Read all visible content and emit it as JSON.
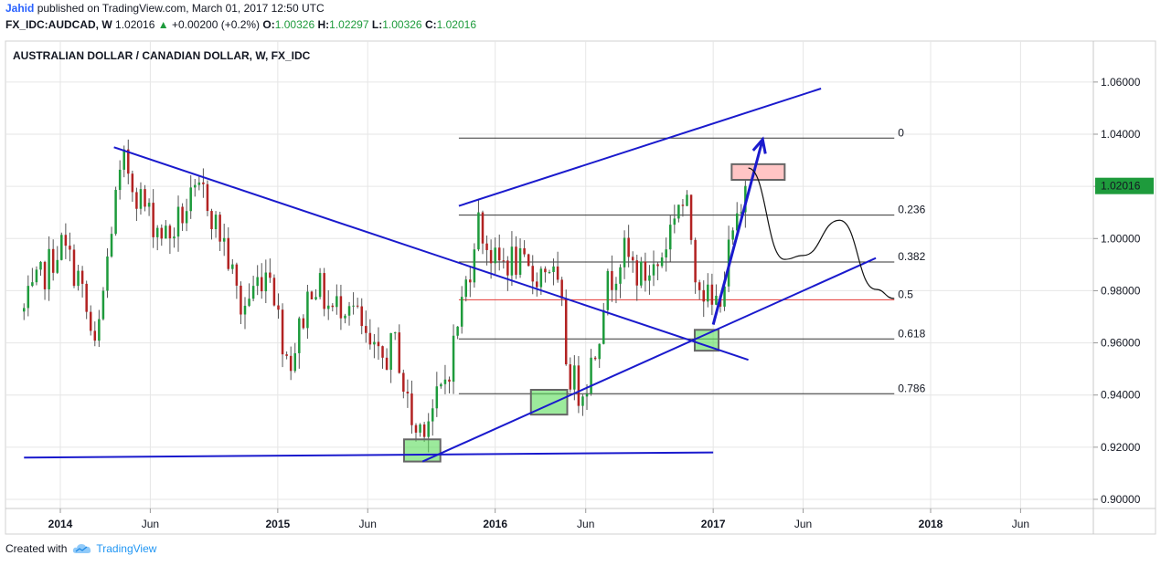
{
  "header": {
    "author": "Jahid",
    "published_text": "published on TradingView.com, March 01, 2017 12:50 UTC",
    "symbol": "FX_IDC:AUDCAD, W",
    "last": "1.02016",
    "change": "+0.00200 (+0.2%)",
    "o_label": "O:",
    "o_value": "1.00326",
    "h_label": "H:",
    "h_value": "1.02297",
    "l_label": "L:",
    "l_value": "1.00326",
    "c_label": "C:",
    "c_value": "1.02016"
  },
  "footer": {
    "created_with": "Created with",
    "brand": "TradingView"
  },
  "colors": {
    "up": "#1e9b3c",
    "down": "#b22222",
    "trend": "#1a1acd",
    "price_badge": "#1e9b3c",
    "grid": "#e6e6e6",
    "fib_mid": "#e53935"
  },
  "chart_data": {
    "type": "candlestick",
    "title": "AUSTRALIAN DOLLAR / CANADIAN DOLLAR, W, FX_IDC",
    "ylim": [
      0.89,
      1.073
    ],
    "y_ticks": [
      "1.06000",
      "1.04000",
      "1.02000",
      "1.00000",
      "0.98000",
      "0.96000",
      "0.94000",
      "0.92000",
      "0.90000"
    ],
    "x_ticks": [
      {
        "label": "2014",
        "bold": true,
        "date": "2014-01"
      },
      {
        "label": "Jun",
        "bold": false,
        "date": "2014-06"
      },
      {
        "label": "2015",
        "bold": true,
        "date": "2015-01"
      },
      {
        "label": "Jun",
        "bold": false,
        "date": "2015-06"
      },
      {
        "label": "2016",
        "bold": true,
        "date": "2016-01"
      },
      {
        "label": "Jun",
        "bold": false,
        "date": "2016-06"
      },
      {
        "label": "2017",
        "bold": true,
        "date": "2017-01"
      },
      {
        "label": "Jun",
        "bold": false,
        "date": "2017-06"
      },
      {
        "label": "2018",
        "bold": true,
        "date": "2018-01"
      },
      {
        "label": "Jun",
        "bold": false,
        "date": "2018-06"
      }
    ],
    "last_price": "1.02016",
    "close_path": [
      [
        "2013-11",
        0.972
      ],
      [
        "2013-12",
        0.985
      ],
      [
        "2014-01",
        0.998
      ],
      [
        "2014-02",
        0.985
      ],
      [
        "2014-03",
        0.955
      ],
      [
        "2014-03-20",
        0.99
      ],
      [
        "2014-04",
        1.012
      ],
      [
        "2014-04-20",
        1.03
      ],
      [
        "2014-05",
        1.022
      ],
      [
        "2014-06",
        1.008
      ],
      [
        "2014-07",
        1.0
      ],
      [
        "2014-08",
        1.012
      ],
      [
        "2014-09",
        1.018
      ],
      [
        "2014-09-20",
        1.004
      ],
      [
        "2014-10",
        1.0
      ],
      [
        "2014-11",
        0.972
      ],
      [
        "2014-12",
        0.985
      ],
      [
        "2014-12-20",
        0.99
      ],
      [
        "2015-01",
        0.97
      ],
      [
        "2015-01-20",
        0.952
      ],
      [
        "2015-02",
        0.96
      ],
      [
        "2015-03",
        0.985
      ],
      [
        "2015-04",
        0.972
      ],
      [
        "2015-05",
        0.978
      ],
      [
        "2015-06",
        0.958
      ],
      [
        "2015-06-20",
        0.952
      ],
      [
        "2015-07",
        0.955
      ],
      [
        "2015-07-20",
        0.96
      ],
      [
        "2015-08",
        0.942
      ],
      [
        "2015-08-20",
        0.925
      ],
      [
        "2015-09",
        0.93
      ],
      [
        "2015-09-20",
        0.935
      ],
      [
        "2015-10",
        0.94
      ],
      [
        "2015-10-20",
        0.955
      ],
      [
        "2015-11",
        0.97
      ],
      [
        "2015-11-20",
        0.99
      ],
      [
        "2015-12",
        1.008
      ],
      [
        "2016-01",
        0.99
      ],
      [
        "2016-02",
        0.992
      ],
      [
        "2016-03",
        0.985
      ],
      [
        "2016-04",
        0.99
      ],
      [
        "2016-04-20",
        0.975
      ],
      [
        "2016-05",
        0.95
      ],
      [
        "2016-05-20",
        0.942
      ],
      [
        "2016-06",
        0.945
      ],
      [
        "2016-06-20",
        0.96
      ],
      [
        "2016-07",
        0.978
      ],
      [
        "2016-08",
        0.995
      ],
      [
        "2016-09",
        0.985
      ],
      [
        "2016-10",
        0.99
      ],
      [
        "2016-10-20",
        1.003
      ],
      [
        "2016-11",
        1.015
      ],
      [
        "2016-11-20",
        1.01
      ],
      [
        "2016-12",
        0.99
      ],
      [
        "2016-12-20",
        0.978
      ],
      [
        "2017-01",
        0.972
      ],
      [
        "2017-01-20",
        0.985
      ],
      [
        "2017-02",
        1.0
      ],
      [
        "2017-02-15",
        1.006
      ],
      [
        "2017-02-27",
        1.02016
      ]
    ],
    "fib_levels": [
      {
        "label": "0",
        "value": 1.0385
      },
      {
        "label": "0.236",
        "value": 1.009
      },
      {
        "label": "0.382",
        "value": 0.991
      },
      {
        "label": "0.5",
        "value": 0.9765
      },
      {
        "label": "0.618",
        "value": 0.9615
      },
      {
        "label": "0.786",
        "value": 0.9405
      }
    ],
    "fib_range": [
      "2015-11",
      "2017-11"
    ],
    "trendlines": [
      {
        "name": "descending",
        "from": [
          "2014-04",
          1.035
        ],
        "to": [
          "2017-03",
          0.9535
        ]
      },
      {
        "name": "rising-support",
        "from": [
          "2015-09",
          0.9145
        ],
        "to": [
          "2017-10",
          0.9925
        ]
      },
      {
        "name": "upper-channel",
        "from": [
          "2015-11",
          1.0125
        ],
        "to": [
          "2017-07",
          1.0575
        ]
      },
      {
        "name": "base",
        "from": [
          "2013-11",
          0.916
        ],
        "to": [
          "2017-01",
          0.918
        ]
      }
    ],
    "arrow": {
      "from": [
        "2017-01",
        0.967
      ],
      "to": [
        "2017-03-25",
        1.038
      ]
    },
    "projection": [
      [
        "2017-03",
        1.027
      ],
      [
        "2017-05",
        0.992
      ],
      [
        "2017-06",
        0.9935
      ],
      [
        "2017-08",
        1.007
      ],
      [
        "2017-10",
        0.9805
      ],
      [
        "2017-11",
        0.977
      ]
    ],
    "zones": [
      {
        "kind": "support",
        "x": [
          "2015-08",
          "2015-10"
        ],
        "y": [
          0.9145,
          0.923
        ]
      },
      {
        "kind": "support",
        "x": [
          "2016-03",
          "2016-05"
        ],
        "y": [
          0.9325,
          0.942
        ]
      },
      {
        "kind": "support",
        "x": [
          "2016-12",
          "2017-01-10"
        ],
        "y": [
          0.957,
          0.965
        ]
      },
      {
        "kind": "resistance",
        "x": [
          "2017-02",
          "2017-05"
        ],
        "y": [
          1.0225,
          1.0285
        ]
      }
    ]
  }
}
